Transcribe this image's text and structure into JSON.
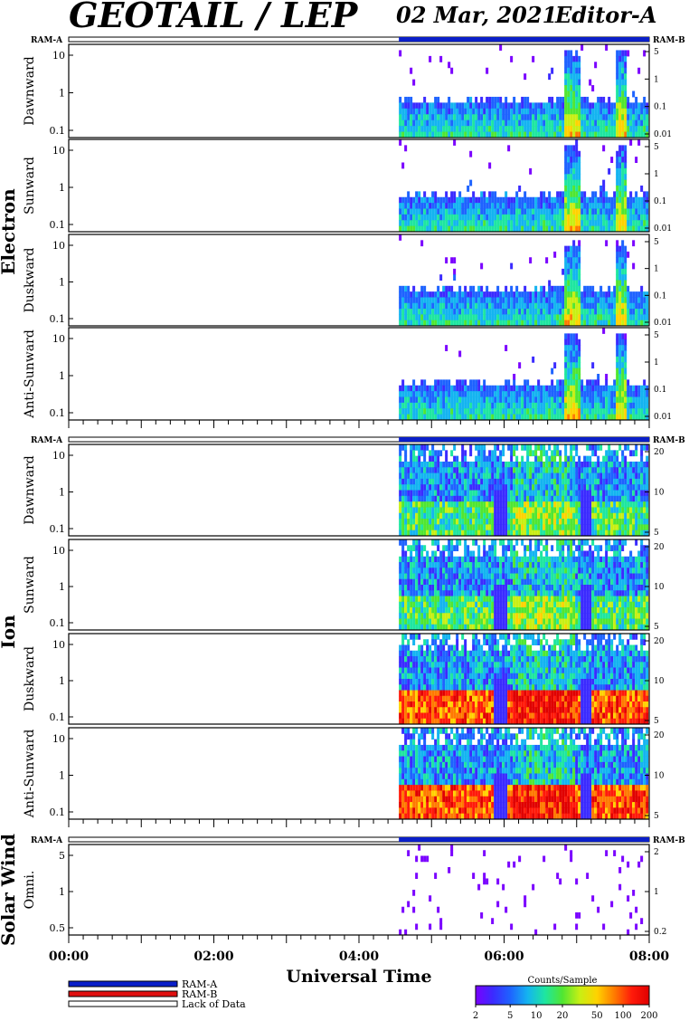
{
  "header": {
    "title": "GEOTAIL / LEP",
    "date": "02 Mar, 2021",
    "editor": "Editor-A"
  },
  "labels": {
    "ram_a": "RAM-A",
    "ram_b": "RAM-B",
    "x_axis_title": "Universal Time"
  },
  "legend": {
    "items": [
      {
        "label": "RAM-A",
        "color": "#0a1fc9"
      },
      {
        "label": "RAM-B",
        "color": "#e01010"
      },
      {
        "label": "Lack of Data",
        "color": "#ffffff"
      }
    ]
  },
  "colorbar": {
    "title": "Counts/Sample",
    "ticks": [
      "2",
      "5",
      "10",
      "20",
      "50",
      "100",
      "200"
    ],
    "colors": [
      "#7a00ff",
      "#3b2bff",
      "#1e63ff",
      "#14b4f0",
      "#1ee6a0",
      "#50e632",
      "#c8ef14",
      "#ffd200",
      "#ff7a00",
      "#ff1a0a",
      "#e00000"
    ]
  },
  "chart_data": {
    "type": "heatmap",
    "x_ticks": [
      "00:00",
      "02:00",
      "04:00",
      "06:00",
      "08:00"
    ],
    "x_range_hours": [
      0,
      8
    ],
    "data_start_hours": 4.55,
    "groups": [
      {
        "name": "Electron",
        "panels": [
          {
            "name": "Dawnward",
            "left_ticks": [
              "10",
              "1",
              "0.1"
            ],
            "right_ticks": [
              "5",
              "1",
              "0.1",
              "0.01"
            ]
          },
          {
            "name": "Sunward",
            "left_ticks": [
              "10",
              "1",
              "0.1"
            ],
            "right_ticks": [
              "5",
              "1",
              "0.1",
              "0.01"
            ]
          },
          {
            "name": "Duskward",
            "left_ticks": [
              "10",
              "1",
              "0.1"
            ],
            "right_ticks": [
              "5",
              "1",
              "0.1",
              "0.01"
            ]
          },
          {
            "name": "Anti-Sunward",
            "left_ticks": [
              "10",
              "1",
              "0.1"
            ],
            "right_ticks": [
              "5",
              "1",
              "0.1",
              "0.01"
            ]
          }
        ]
      },
      {
        "name": "Ion",
        "panels": [
          {
            "name": "Dawnward",
            "left_ticks": [
              "10",
              "1",
              "0.1"
            ],
            "right_ticks": [
              "20",
              "10",
              "5"
            ]
          },
          {
            "name": "Sunward",
            "left_ticks": [
              "10",
              "1",
              "0.1"
            ],
            "right_ticks": [
              "20",
              "10",
              "5"
            ]
          },
          {
            "name": "Duskward",
            "left_ticks": [
              "10",
              "1",
              "0.1"
            ],
            "right_ticks": [
              "20",
              "10",
              "5"
            ]
          },
          {
            "name": "Anti-Sunward",
            "left_ticks": [
              "10",
              "1",
              "0.1"
            ],
            "right_ticks": [
              "20",
              "10",
              "5"
            ]
          }
        ]
      },
      {
        "name": "Solar Wind",
        "panels": [
          {
            "name": "Omni.",
            "left_ticks": [
              "5",
              "1",
              "0.5"
            ],
            "right_ticks": [
              "2",
              "1",
              "0.2"
            ]
          }
        ]
      }
    ]
  }
}
